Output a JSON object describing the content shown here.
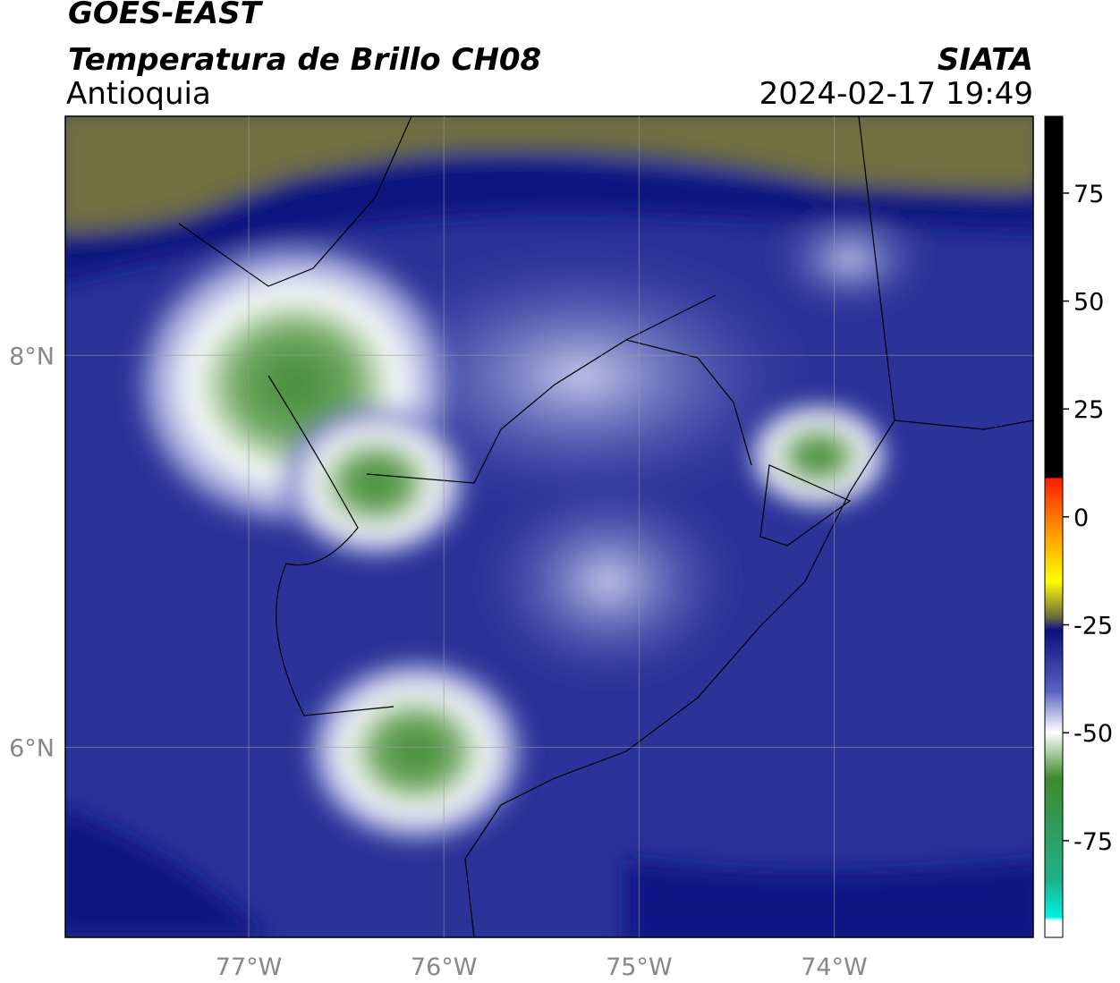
{
  "chart_data": {
    "type": "map",
    "title": "GOES-EAST",
    "subtitle": "Temperatura de Brillo CH08",
    "region": "Antioquia",
    "source": "SIATA",
    "datetime": "2024-02-17 19:49",
    "xlim": [
      -77.94,
      -72.98
    ],
    "ylim": [
      5.03,
      9.22
    ],
    "xticks": [
      {
        "value": -77,
        "label": "77°W"
      },
      {
        "value": -76,
        "label": "76°W"
      },
      {
        "value": -75,
        "label": "75°W"
      },
      {
        "value": -74,
        "label": "74°W"
      }
    ],
    "yticks": [
      {
        "value": 8,
        "label": "8°N"
      },
      {
        "value": 6,
        "label": "6°N"
      }
    ],
    "grid": true,
    "colorbar": {
      "lim": [
        -97.4,
        92.8
      ],
      "ticks": [
        75,
        50,
        25,
        0,
        -25,
        -50,
        -75
      ]
    }
  }
}
